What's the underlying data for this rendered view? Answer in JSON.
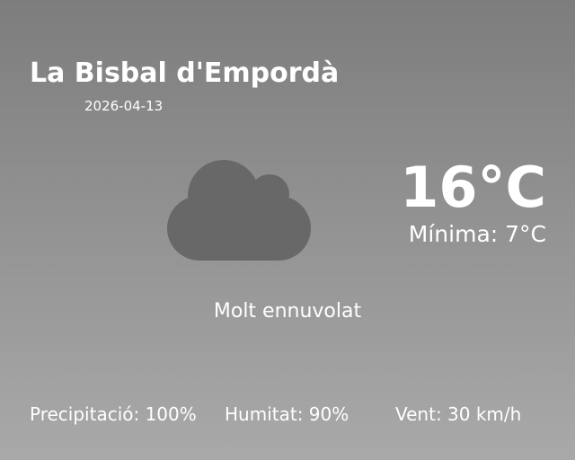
{
  "location": "La Bisbal d'Empordà",
  "date": "2026-04-13",
  "temperature": "16°C",
  "minimum": "Mínima: 7°C",
  "condition": "Molt ennuvolat",
  "icon": "cloud-icon",
  "icon_color": "#686868",
  "stats": {
    "precipitation": "Precipitació: 100%",
    "humidity": "Humitat: 90%",
    "wind": "Vent: 30 km/h"
  }
}
